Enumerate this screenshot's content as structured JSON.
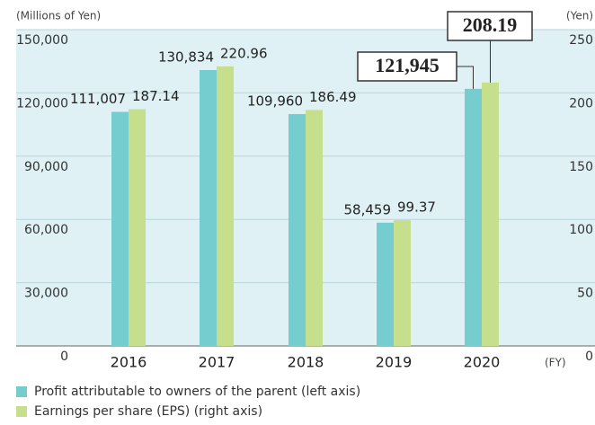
{
  "chart_data": {
    "type": "bar",
    "y_label": "(Millions of Yen)",
    "y2_label": "(Yen)",
    "x_label": "(FY)",
    "categories": [
      "2016",
      "2017",
      "2018",
      "2019",
      "2020"
    ],
    "series": [
      {
        "name": "Profit attributable to owners of the parent (left axis)",
        "color": "#76cdd0",
        "values": [
          111007,
          130834,
          109960,
          58459,
          121945
        ],
        "value_labels": [
          "111,007",
          "130,834",
          "109,960",
          "58,459",
          "121,945"
        ]
      },
      {
        "name": "Earnings per share (EPS) (right axis)",
        "color": "#c5df8d",
        "axis": "y2",
        "values": [
          187.14,
          220.96,
          186.49,
          99.37,
          208.19
        ]
      }
    ],
    "ylim": [
      0,
      150000
    ],
    "yticks": [
      0,
      {
        "value": 30000,
        "label": "30,000"
      },
      {
        "value": 60000,
        "label": "60,000"
      },
      {
        "value": 90000,
        "label": "90,000"
      },
      {
        "value": 120000,
        "label": "120,000"
      },
      {
        "value": 150000,
        "label": "150,000"
      }
    ],
    "y2lim": [
      0,
      250
    ],
    "y2ticks": [
      0,
      50,
      100,
      150,
      200,
      250
    ],
    "grid": true,
    "background": "#dff1f4"
  }
}
